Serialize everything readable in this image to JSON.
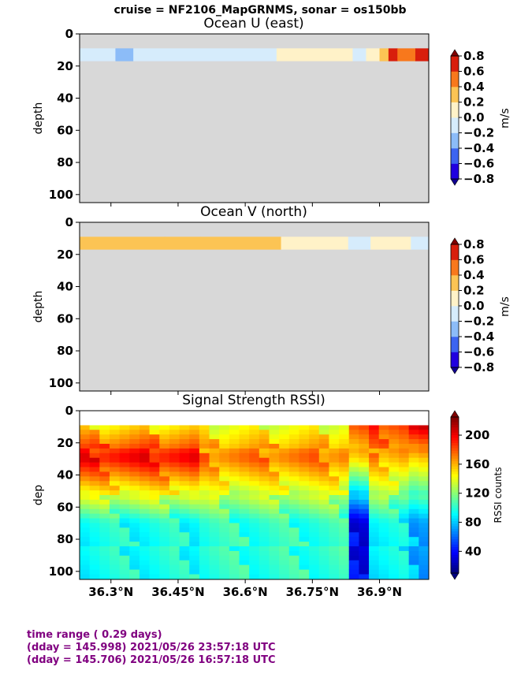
{
  "figure": {
    "suptitle": "cruise = NF2106_MapGRNMS,  sonar = os150bb",
    "footer": [
      "time range ( 0.29 days)",
      "(dday = 145.998) 2021/05/26 23:57:18 UTC",
      "(dday = 145.706) 2021/05/26 16:57:18 UTC"
    ]
  },
  "chart_data": [
    {
      "type": "heatmap",
      "title": "Ocean U (east)",
      "ylabel": "depth",
      "xlabel": "",
      "xlim": [
        36.23,
        37.01
      ],
      "ylim": [
        105,
        0
      ],
      "yticks": [
        0,
        20,
        40,
        60,
        80,
        100
      ],
      "colorbar": {
        "label": "m/s",
        "ticks": [
          "0.8",
          "0.6",
          "0.4",
          "0.2",
          "0.0",
          "−0.2",
          "−0.4",
          "−0.6",
          "−0.8"
        ],
        "colors": [
          "#2000e0",
          "#3c64f0",
          "#8cbcf8",
          "#d6ecfc",
          "#fff2c8",
          "#fcc454",
          "#f8781c",
          "#d81e0c"
        ]
      },
      "nodata_color": "#d8d8d8",
      "valid_depth_range": [
        9,
        17
      ],
      "segments": [
        {
          "x0": 36.23,
          "x1": 36.31,
          "value": -0.1
        },
        {
          "x0": 36.31,
          "x1": 36.35,
          "value": -0.3
        },
        {
          "x0": 36.35,
          "x1": 36.67,
          "value": -0.1
        },
        {
          "x0": 36.67,
          "x1": 36.84,
          "value": 0.1
        },
        {
          "x0": 36.84,
          "x1": 36.87,
          "value": -0.1
        },
        {
          "x0": 36.87,
          "x1": 36.9,
          "value": 0.1
        },
        {
          "x0": 36.9,
          "x1": 36.92,
          "value": 0.3
        },
        {
          "x0": 36.92,
          "x1": 36.94,
          "value": 0.7
        },
        {
          "x0": 36.94,
          "x1": 36.98,
          "value": 0.5
        },
        {
          "x0": 36.98,
          "x1": 37.01,
          "value": 0.7
        }
      ]
    },
    {
      "type": "heatmap",
      "title": "Ocean V (north)",
      "ylabel": "depth",
      "xlabel": "",
      "xlim": [
        36.23,
        37.01
      ],
      "ylim": [
        105,
        0
      ],
      "yticks": [
        0,
        20,
        40,
        60,
        80,
        100
      ],
      "colorbar": {
        "label": "m/s",
        "ticks": [
          "0.8",
          "0.6",
          "0.4",
          "0.2",
          "0.0",
          "−0.2",
          "−0.4",
          "−0.6",
          "−0.8"
        ],
        "colors": [
          "#2000e0",
          "#3c64f0",
          "#8cbcf8",
          "#d6ecfc",
          "#fff2c8",
          "#fcc454",
          "#f8781c",
          "#d81e0c"
        ]
      },
      "nodata_color": "#d8d8d8",
      "valid_depth_range": [
        9,
        17
      ],
      "segments": [
        {
          "x0": 36.23,
          "x1": 36.42,
          "value": 0.3
        },
        {
          "x0": 36.42,
          "x1": 36.5,
          "value": 0.3
        },
        {
          "x0": 36.5,
          "x1": 36.68,
          "value": 0.3
        },
        {
          "x0": 36.68,
          "x1": 36.83,
          "value": 0.1
        },
        {
          "x0": 36.83,
          "x1": 36.88,
          "value": -0.1
        },
        {
          "x0": 36.88,
          "x1": 36.97,
          "value": 0.1
        },
        {
          "x0": 36.97,
          "x1": 37.01,
          "value": -0.1
        }
      ]
    },
    {
      "type": "heatmap",
      "title": "Signal Strength RSSI)",
      "ylabel": "dep",
      "xlabel": "",
      "xlim": [
        36.23,
        37.01
      ],
      "ylim": [
        105,
        0
      ],
      "yticks": [
        0,
        20,
        40,
        60,
        80,
        100
      ],
      "xticks": [
        "36.3°N",
        "36.45°N",
        "36.6°N",
        "36.75°N",
        "36.9°N"
      ],
      "xtick_values": [
        36.3,
        36.45,
        36.6,
        36.75,
        36.9
      ],
      "colorbar": {
        "label": "RSSI counts",
        "range": [
          10,
          225
        ],
        "ticks": [
          40,
          80,
          120,
          160,
          200
        ]
      },
      "depth_range": [
        9,
        105
      ],
      "columns": 35,
      "profile_regions": [
        {
          "x0": 36.23,
          "x1": 36.5,
          "surface": 150,
          "peak": 200,
          "deep": 95
        },
        {
          "x0": 36.5,
          "x1": 36.83,
          "surface": 140,
          "peak": 175,
          "deep": 100
        },
        {
          "x0": 36.83,
          "x1": 36.87,
          "surface": 175,
          "peak": 150,
          "deep": 35
        },
        {
          "x0": 36.87,
          "x1": 36.97,
          "surface": 185,
          "peak": 165,
          "deep": 90
        },
        {
          "x0": 36.97,
          "x1": 37.01,
          "surface": 200,
          "peak": 150,
          "deep": 75
        }
      ]
    }
  ]
}
